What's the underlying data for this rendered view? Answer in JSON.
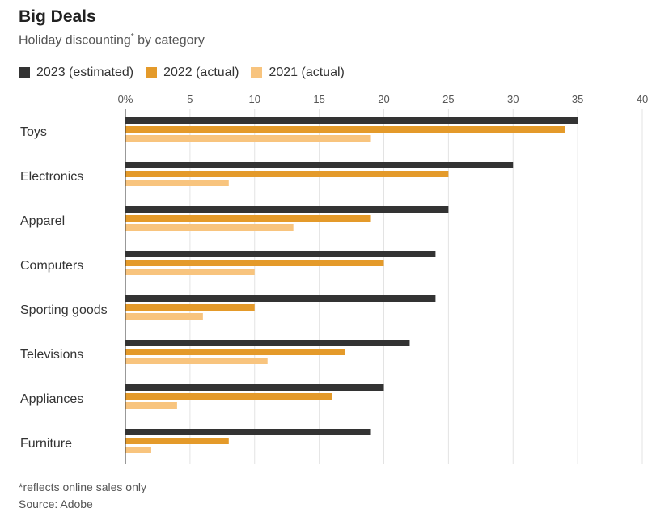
{
  "header": {
    "title": "Big Deals",
    "subtitle": "Holiday discounting",
    "subtitle_mark": "*",
    "subtitle_suffix": " by category"
  },
  "footer": {
    "note": "*reflects online sales only",
    "source": "Source: Adobe"
  },
  "chart_data": {
    "type": "bar",
    "orientation": "horizontal",
    "title": "Big Deals",
    "subtitle": "Holiday discounting* by category",
    "categories": [
      "Toys",
      "Electronics",
      "Apparel",
      "Computers",
      "Sporting goods",
      "Televisions",
      "Appliances",
      "Furniture"
    ],
    "series": [
      {
        "name": "2023 (estimated)",
        "color": "#333333",
        "values": [
          35,
          30,
          25,
          24,
          24,
          22,
          20,
          19
        ]
      },
      {
        "name": "2022 (actual)",
        "color": "#e49a2a",
        "values": [
          34,
          25,
          19,
          20,
          10,
          17,
          16,
          8
        ]
      },
      {
        "name": "2021 (actual)",
        "color": "#f8c47e",
        "values": [
          19,
          8,
          13,
          10,
          6,
          11,
          4,
          2
        ]
      }
    ],
    "xlim": [
      0,
      40
    ],
    "xticks": [
      0,
      5,
      10,
      15,
      20,
      25,
      30,
      35,
      40
    ],
    "xtick_labels": [
      "0%",
      "5",
      "10",
      "15",
      "20",
      "25",
      "30",
      "35",
      "40"
    ],
    "xlabel": "",
    "ylabel": "",
    "grid": true,
    "legend_position": "top-left"
  }
}
